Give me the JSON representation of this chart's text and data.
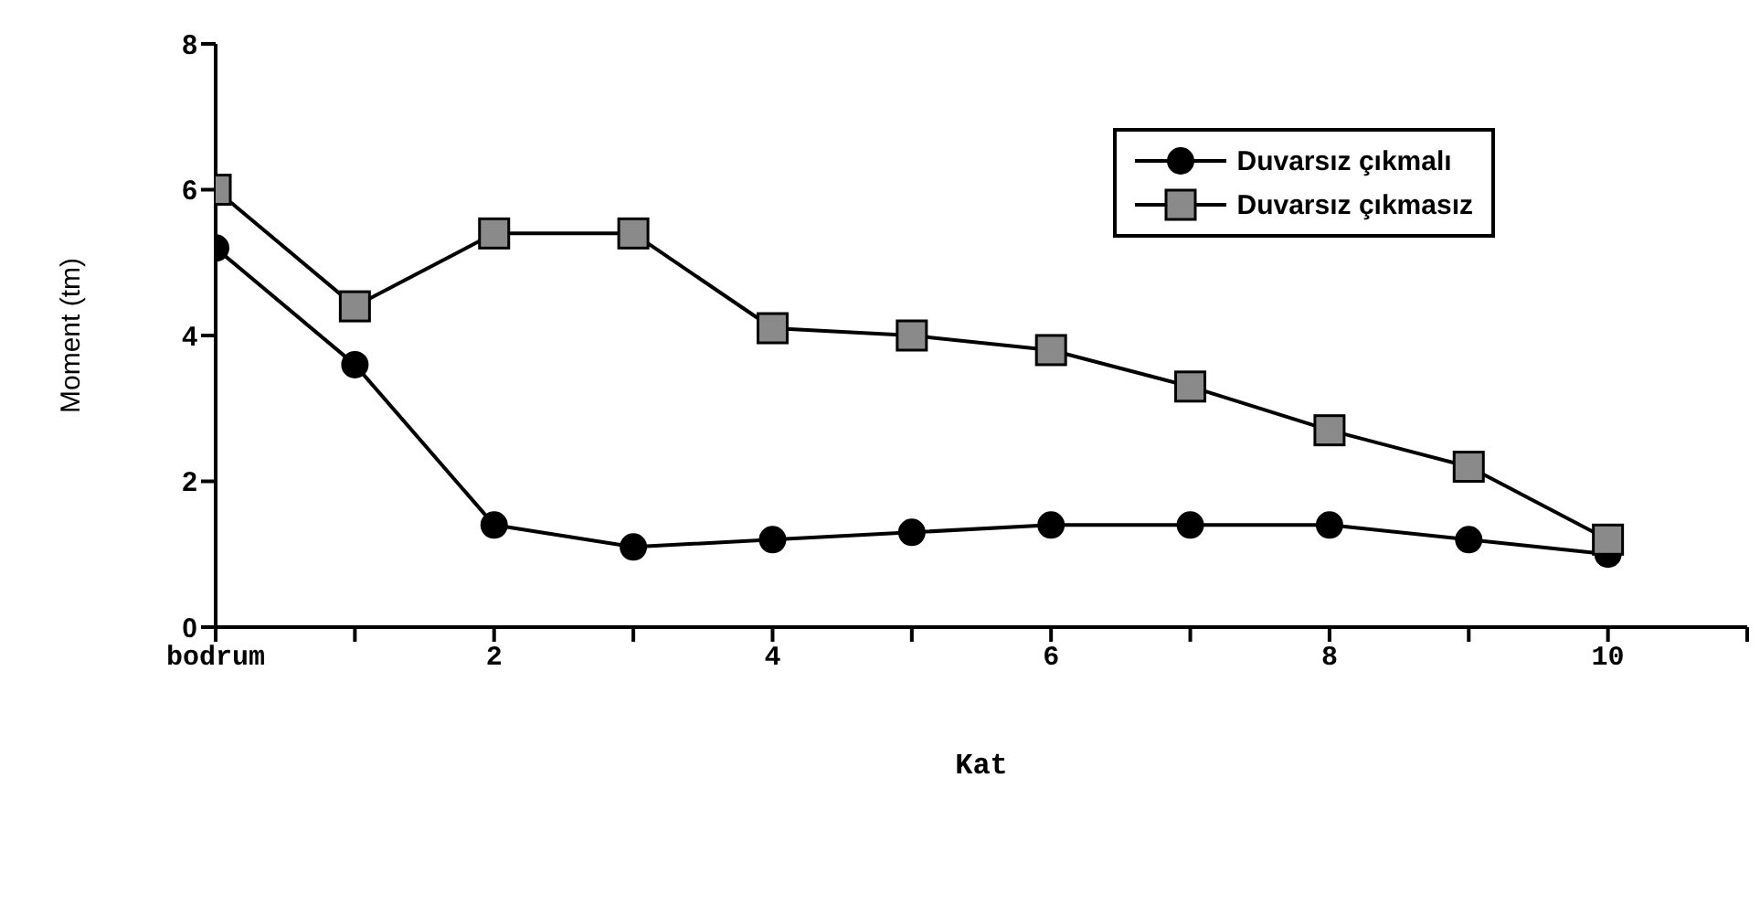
{
  "chart_data": {
    "type": "line",
    "xlabel": "Kat",
    "ylabel": "Moment (tm)",
    "x": [
      0,
      1,
      2,
      3,
      4,
      5,
      6,
      7,
      8,
      9,
      10
    ],
    "xlim": [
      0,
      11
    ],
    "xticks": [
      {
        "value": 0,
        "label": "bodrum"
      },
      {
        "value": 1,
        "label": null
      },
      2,
      {
        "value": 3,
        "label": null
      },
      4,
      {
        "value": 5,
        "label": null
      },
      6,
      {
        "value": 7,
        "label": null
      },
      8,
      {
        "value": 9,
        "label": null
      },
      10,
      {
        "value": 11,
        "label": null
      }
    ],
    "ylim": [
      0,
      8
    ],
    "yticks": [
      0,
      2,
      4,
      6,
      8
    ],
    "legend": "top right",
    "line_style": "solid",
    "series": [
      {
        "name": "Duvarsız çıkmalı",
        "color": "#000000",
        "marker": "circle",
        "values": [
          5.2,
          3.6,
          1.4,
          1.1,
          1.2,
          1.3,
          1.4,
          1.4,
          1.4,
          1.2,
          1.0
        ]
      },
      {
        "name": "Duvarsız çıkmasız",
        "color": "#000000",
        "marker": "square",
        "values": [
          6.0,
          4.4,
          5.4,
          5.4,
          4.1,
          4.0,
          3.8,
          3.3,
          2.7,
          2.2,
          1.2
        ]
      }
    ]
  }
}
